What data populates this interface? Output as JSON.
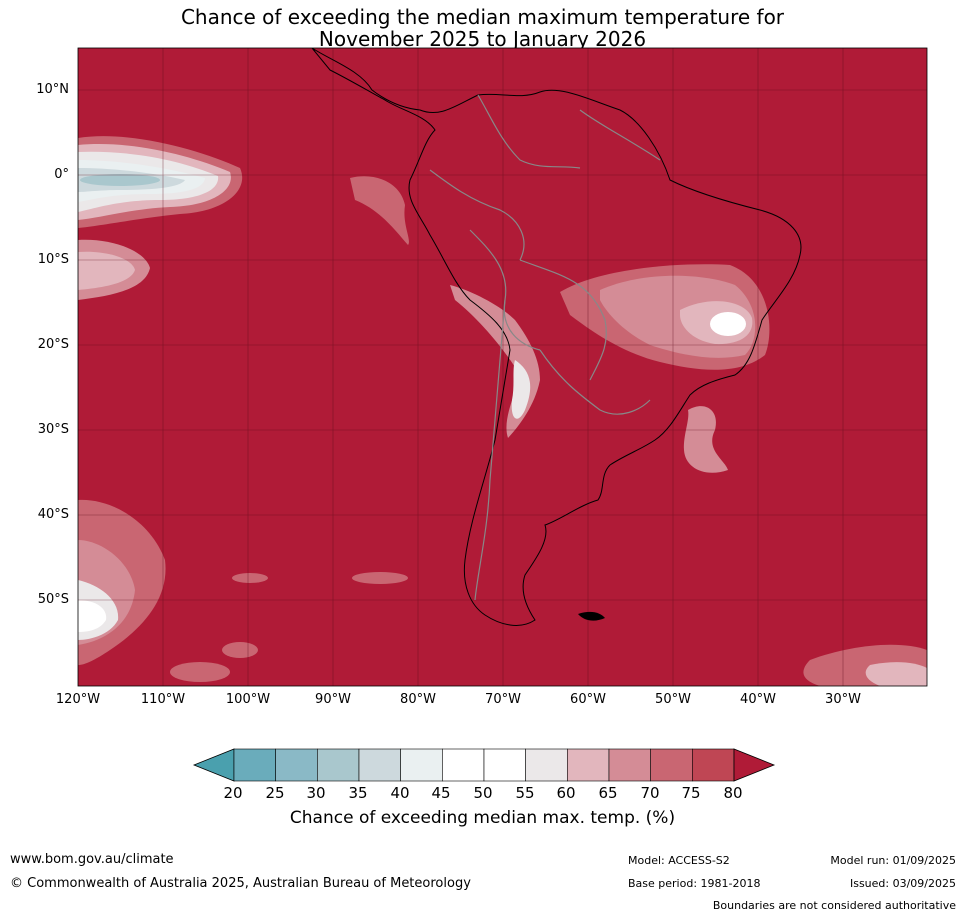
{
  "title": {
    "line1": "Chance of exceeding the median maximum temperature for",
    "line2": "November 2025 to January 2026"
  },
  "map": {
    "background_color": "#b01b37",
    "lat_labels": [
      "10°N",
      "0°",
      "10°S",
      "20°S",
      "30°S",
      "40°S",
      "50°S"
    ],
    "lat_values": [
      10,
      0,
      -10,
      -20,
      -30,
      -40,
      -50
    ],
    "lon_labels": [
      "120°W",
      "110°W",
      "100°W",
      "90°W",
      "80°W",
      "70°W",
      "60°W",
      "50°W",
      "40°W",
      "30°W"
    ],
    "lon_values": [
      -120,
      -110,
      -100,
      -90,
      -80,
      -70,
      -60,
      -50,
      -40,
      -30
    ],
    "lat_range": [
      -60,
      15
    ],
    "lon_range": [
      -120,
      -20
    ],
    "grid": true
  },
  "colorbar": {
    "ticks": [
      "20",
      "25",
      "30",
      "35",
      "40",
      "45",
      "50",
      "55",
      "60",
      "65",
      "70",
      "75",
      "80"
    ],
    "colors": [
      "#6aacbb",
      "#8ab9c6",
      "#a9c7cd",
      "#cdd9dd",
      "#eaf0f1",
      "#ffffff",
      "#ffffff",
      "#ebe8e9",
      "#e2b6bd",
      "#d48c96",
      "#c96672",
      "#bf4654"
    ],
    "under_color": "#4aa0ae",
    "over_color": "#b01b37",
    "label": "Chance of exceeding median max. temp. (%)"
  },
  "footer": {
    "url": "www.bom.gov.au/climate",
    "copyright": "© Commonwealth of Australia 2025, Australian Bureau of Meteorology",
    "model": "Model: ACCESS-S2",
    "base_period": "Base period: 1981-2018",
    "model_run": "Model run: 01/09/2025",
    "issued": "Issued: 03/09/2025",
    "boundaries": "Boundaries are not considered authoritative"
  }
}
